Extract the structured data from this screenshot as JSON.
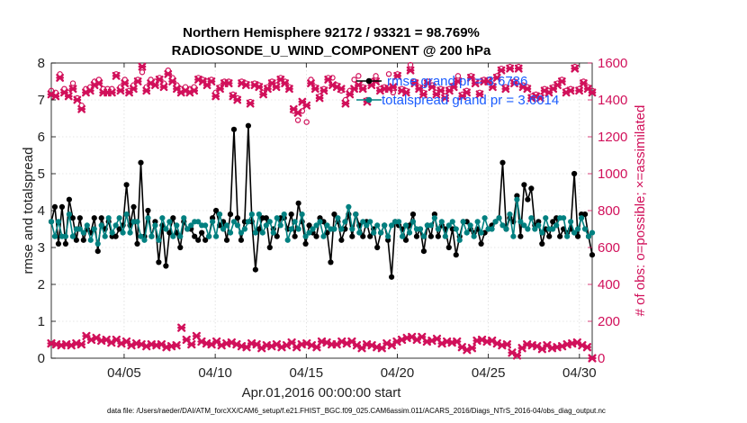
{
  "chart_data": {
    "type": "line",
    "title_line1": "Northern Hemisphere 92172 / 93321 = 98.769%",
    "title_line2": "RADIOSONDE_U_WIND_COMPONENT @ 200 hPa",
    "xlabel": "Apr.01,2016 00:00:00 start",
    "ylabel_left": "rmse and totalspread",
    "ylabel_right": "# of obs: o=possible; ×=assimilated",
    "footer": "data file: /Users/raeder/DAI/ATM_forcXX/CAM6_setup/f.e21.FHIST_BGC.f09_025.CAM6assim.011/ACARS_2016/Diags_NTrS_2016-04/obs_diag_output.nc",
    "xlim": [
      1,
      30.7
    ],
    "ylim_left": [
      0,
      8
    ],
    "ylim_right": [
      0,
      1600
    ],
    "x_ticks": [
      5,
      10,
      15,
      20,
      25,
      30
    ],
    "x_tick_labels": [
      "04/05",
      "04/10",
      "04/15",
      "04/20",
      "04/25",
      "04/30"
    ],
    "y_left_ticks": [
      "0",
      "1",
      "2",
      "3",
      "4",
      "5",
      "6",
      "7",
      "8"
    ],
    "y_right_ticks": [
      "0",
      "200",
      "400",
      "600",
      "800",
      "1000",
      "1200",
      "1400",
      "1600"
    ],
    "legend": [
      "rmse grand pr = 3.6786",
      "totalspread grand pr = 3.6014"
    ],
    "colors": {
      "rmse": "#000000",
      "spread": "#008080",
      "obs": "#d1105a"
    },
    "series": [
      {
        "name": "rmse",
        "axis": "left",
        "color": "#000000",
        "values": [
          3.7,
          4.1,
          3.1,
          4.1,
          3.1,
          4.3,
          3.8,
          3.2,
          3.8,
          3.2,
          3.5,
          3.4,
          3.8,
          2.9,
          3.8,
          3.5,
          3.7,
          3.3,
          3.3,
          3.5,
          3.6,
          4.7,
          3.6,
          4.1,
          3.1,
          5.3,
          3.3,
          4.0,
          3.3,
          3.7,
          2.6,
          3.6,
          2.5,
          3.4,
          3.8,
          3.4,
          3.0,
          3.7,
          3.5,
          3.5,
          3.3,
          3.2,
          3.4,
          3.2,
          3.3,
          3.8,
          4.0,
          3.6,
          3.7,
          3.2,
          3.9,
          6.2,
          3.8,
          3.2,
          3.7,
          6.3,
          3.7,
          2.4,
          3.5,
          3.8,
          3.8,
          3.0,
          3.5,
          3.3,
          3.8,
          3.8,
          3.5,
          3.9,
          3.3,
          4.2,
          3.7,
          3.1,
          3.6,
          3.4,
          3.3,
          3.8,
          3.7,
          3.4,
          2.6,
          3.9,
          3.7,
          3.2,
          3.5,
          3.9,
          3.3,
          3.9,
          3.6,
          3.3,
          3.7,
          3.3,
          3.5,
          3.0,
          3.4,
          3.6,
          3.2,
          2.2,
          3.7,
          3.6,
          3.5,
          3.2,
          3.6,
          3.9,
          3.3,
          3.5,
          2.9,
          3.6,
          3.3,
          3.9,
          3.3,
          3.6,
          3.5,
          3.0,
          3.5,
          2.8,
          3.3,
          3.7,
          3.7,
          3.5,
          3.4,
          3.5,
          3.1,
          3.4,
          3.5,
          3.6,
          3.7,
          3.8,
          5.3,
          3.5,
          3.8,
          3.7,
          4.4,
          3.3,
          4.7,
          4.3,
          4.6,
          3.6,
          3.7,
          3.1,
          3.5,
          3.3,
          3.7,
          3.8,
          3.3,
          3.5,
          3.4,
          3.5,
          5.0,
          3.3,
          3.9,
          3.9,
          3.3,
          2.8
        ]
      },
      {
        "name": "totalspread",
        "axis": "left",
        "color": "#008080",
        "values": [
          3.7,
          3.3,
          3.7,
          3.3,
          3.3,
          3.9,
          3.3,
          3.5,
          3.5,
          3.4,
          3.6,
          3.2,
          3.5,
          3.1,
          3.6,
          3.3,
          3.8,
          3.4,
          3.6,
          3.8,
          3.4,
          3.9,
          3.4,
          3.7,
          3.7,
          3.3,
          3.2,
          3.8,
          3.3,
          3.6,
          3.2,
          3.8,
          3.5,
          3.7,
          3.3,
          3.6,
          3.3,
          3.8,
          3.5,
          3.6,
          3.7,
          3.7,
          3.6,
          3.6,
          3.3,
          3.7,
          3.3,
          3.9,
          3.5,
          3.6,
          3.4,
          3.7,
          3.6,
          3.4,
          3.5,
          3.7,
          3.9,
          3.4,
          3.9,
          3.4,
          3.6,
          3.7,
          3.4,
          3.8,
          3.6,
          3.9,
          3.2,
          3.5,
          3.7,
          3.5,
          3.9,
          3.3,
          3.4,
          3.5,
          3.6,
          3.7,
          3.3,
          3.6,
          3.5,
          3.5,
          3.8,
          3.5,
          3.7,
          4.1,
          3.5,
          3.9,
          3.4,
          3.7,
          3.6,
          3.7,
          3.4,
          3.6,
          3.4,
          3.6,
          3.3,
          3.6,
          3.7,
          3.7,
          3.3,
          3.6,
          3.4,
          3.7,
          3.5,
          3.5,
          3.3,
          3.6,
          3.6,
          3.8,
          3.5,
          3.7,
          3.3,
          3.6,
          3.7,
          3.5,
          3.2,
          3.7,
          3.4,
          3.6,
          3.3,
          3.7,
          3.4,
          3.8,
          3.5,
          3.5,
          3.7,
          3.8,
          3.6,
          3.5,
          3.9,
          3.3,
          4.3,
          3.7,
          3.6,
          3.5,
          3.8,
          3.5,
          3.6,
          3.4,
          3.8,
          3.5,
          3.5,
          3.6,
          3.8,
          3.8,
          3.3,
          3.7,
          3.4,
          3.5,
          3.8,
          3.5,
          3.3,
          3.4
        ]
      },
      {
        "name": "obs_possible",
        "axis": "right",
        "color": "#d1105a",
        "values": [
          1450,
          1440,
          1540,
          1460,
          1440,
          1490,
          1410,
          1370,
          1460,
          1470,
          1500,
          1510,
          1460,
          1460,
          1460,
          1540,
          1470,
          1510,
          1450,
          1480,
          1510,
          1550,
          1470,
          1510,
          1500,
          1520,
          1490,
          1560,
          1520,
          1480,
          1460,
          1470,
          1460,
          1470,
          1520,
          1510,
          1500,
          1510,
          1440,
          1470,
          1500,
          1500,
          1430,
          1410,
          1500,
          1490,
          1390,
          1490,
          1480,
          1440,
          1470,
          1500,
          1480,
          1520,
          1500,
          1470,
          1340,
          1290,
          1340,
          1280,
          1510,
          1470,
          1420,
          1460,
          1520,
          1520,
          1480,
          1450,
          1400,
          1450,
          1510,
          1530,
          1470,
          1400,
          1500,
          1530,
          1460,
          1470,
          1540,
          1440,
          1540,
          1460,
          1450,
          1590,
          1500,
          1470,
          1440,
          1500,
          1480,
          1440,
          1460,
          1420,
          1460,
          1480,
          1530,
          1430,
          1450,
          1530,
          1500,
          1440,
          1510,
          1510,
          1480,
          1530,
          1570,
          1470,
          1580,
          1500,
          1580,
          1480,
          1470,
          1420,
          1430,
          1420,
          1460,
          1450,
          1470,
          1490,
          1510,
          1450,
          1460,
          1580,
          1460,
          1500,
          1470,
          1450
        ]
      },
      {
        "name": "obs_assimilated",
        "axis": "right",
        "color": "#d1105a",
        "values": [
          1430,
          1420,
          1520,
          1440,
          1420,
          1460,
          1400,
          1350,
          1440,
          1450,
          1480,
          1490,
          1440,
          1440,
          1440,
          1530,
          1450,
          1490,
          1440,
          1460,
          1500,
          1580,
          1450,
          1490,
          1480,
          1510,
          1470,
          1540,
          1500,
          1460,
          1440,
          1450,
          1440,
          1450,
          1510,
          1500,
          1480,
          1500,
          1420,
          1460,
          1490,
          1490,
          1420,
          1400,
          1490,
          1480,
          1380,
          1480,
          1470,
          1430,
          1460,
          1490,
          1470,
          1510,
          1490,
          1460,
          1350,
          1330,
          1390,
          1370,
          1490,
          1460,
          1410,
          1450,
          1510,
          1480,
          1470,
          1460,
          1380,
          1430,
          1460,
          1480,
          1460,
          1390,
          1480,
          1500,
          1450,
          1460,
          1460,
          1470,
          1530,
          1450,
          1440,
          1560,
          1490,
          1460,
          1430,
          1490,
          1470,
          1430,
          1450,
          1410,
          1450,
          1470,
          1500,
          1420,
          1440,
          1520,
          1490,
          1430,
          1500,
          1500,
          1470,
          1520,
          1560,
          1460,
          1570,
          1490,
          1570,
          1470,
          1460,
          1410,
          1420,
          1410,
          1450,
          1440,
          1460,
          1480,
          1500,
          1440,
          1450,
          1570,
          1450,
          1490,
          1460,
          1440
        ]
      },
      {
        "name": "obs_possible_lower",
        "axis": "right",
        "color": "#d1105a",
        "values": [
          80,
          75,
          70,
          75,
          70,
          80,
          75,
          120,
          100,
          110,
          95,
          100,
          85,
          100,
          80,
          90,
          70,
          80,
          75,
          65,
          75,
          70,
          75,
          60,
          65,
          70,
          165,
          100,
          75,
          120,
          90,
          80,
          75,
          90,
          70,
          80,
          85,
          75,
          65,
          60,
          80,
          75,
          55,
          70,
          65,
          75,
          60,
          70,
          85,
          60,
          75,
          80,
          70,
          60,
          90,
          85,
          75,
          75,
          90,
          80,
          90,
          70,
          55,
          75,
          70,
          60,
          55,
          80,
          70,
          90,
          100,
          110,
          115,
          100,
          115,
          90,
          95,
          105,
          80,
          90,
          85,
          90,
          60,
          45,
          55,
          95,
          100,
          90,
          95,
          80,
          70,
          75,
          30,
          15,
          55,
          75,
          70,
          65,
          50,
          70,
          55,
          60,
          65,
          75,
          80,
          85,
          70,
          60,
          0
        ]
      }
    ]
  }
}
